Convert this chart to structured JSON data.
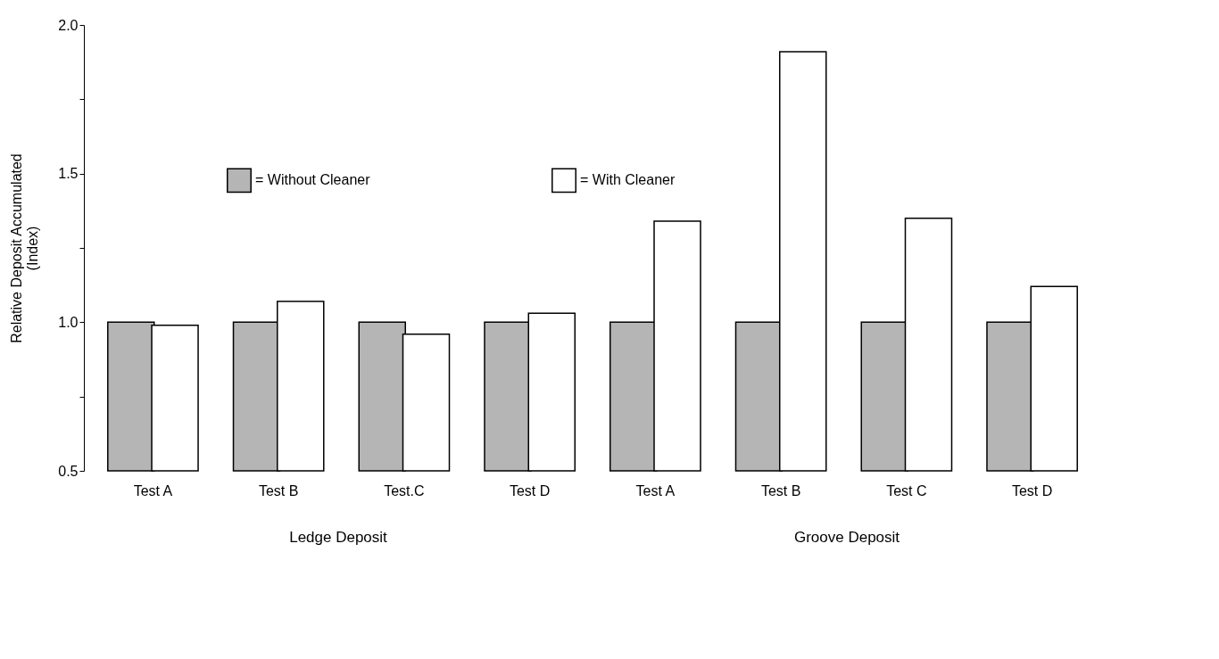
{
  "chart_data": {
    "type": "bar",
    "ylabel": "Relative Deposit Accumulated\n(Index)",
    "categories": [
      "Test A",
      "Test B",
      "Test.C",
      "Test D",
      "Test A",
      "Test B",
      "Test C",
      "Test D"
    ],
    "series": [
      {
        "name": "= Without Cleaner",
        "color": "#b5b5b5",
        "values": [
          1.0,
          1.0,
          1.0,
          1.0,
          1.0,
          1.0,
          1.0,
          1.0
        ]
      },
      {
        "name": "= With Cleaner",
        "color": "#ffffff",
        "values": [
          0.99,
          1.07,
          0.96,
          1.03,
          1.34,
          1.91,
          1.35,
          1.12
        ]
      }
    ],
    "ylim": [
      0.5,
      2.0
    ],
    "yticks": [
      {
        "value": 0.5,
        "label": "0.5"
      },
      {
        "value": 0.75,
        "label": null
      },
      {
        "value": 1.0,
        "label": "1.0"
      },
      {
        "value": 1.25,
        "label": null
      },
      {
        "value": 1.5,
        "label": "1.5"
      },
      {
        "value": 1.75,
        "label": null
      },
      {
        "value": 2.0,
        "label": "2.0"
      }
    ],
    "grid": false,
    "legend": "top left",
    "annotations": [
      "Ledge Deposit",
      "Groove Deposit"
    ]
  }
}
